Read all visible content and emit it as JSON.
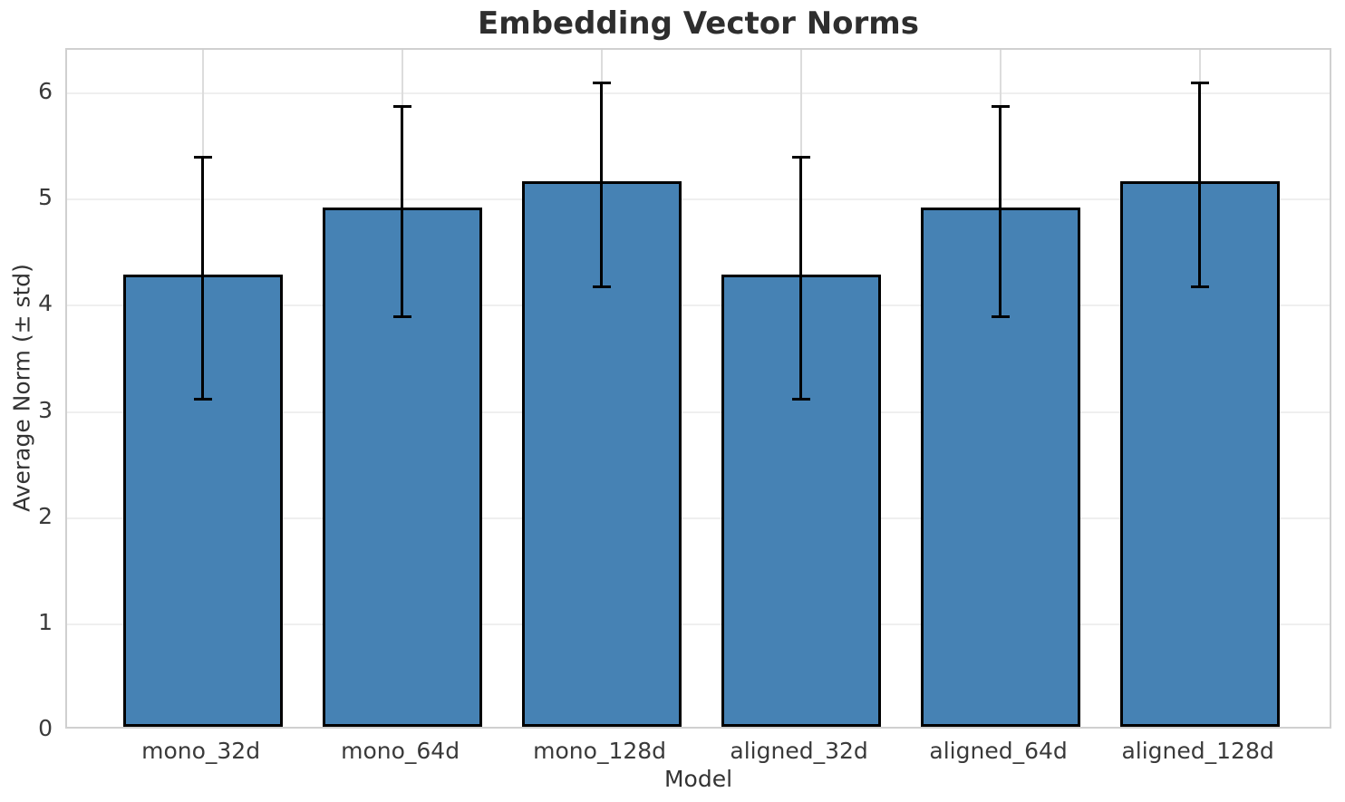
{
  "chart_data": {
    "type": "bar",
    "title": "Embedding Vector Norms",
    "xlabel": "Model",
    "ylabel": "Average Norm (± std)",
    "categories": [
      "mono_32d",
      "mono_64d",
      "mono_128d",
      "aligned_32d",
      "aligned_64d",
      "aligned_128d"
    ],
    "values": [
      4.26,
      4.89,
      5.14,
      4.26,
      4.89,
      5.14
    ],
    "errors": [
      1.14,
      0.99,
      0.96,
      1.14,
      0.99,
      0.96
    ],
    "error_tops": [
      5.4,
      5.88,
      6.1,
      5.4,
      5.88,
      6.1
    ],
    "error_bottoms": [
      3.12,
      3.9,
      4.18,
      3.12,
      3.9,
      4.18
    ],
    "yticks": [
      0,
      1,
      2,
      3,
      4,
      5,
      6
    ],
    "ylim": [
      0,
      6.41
    ],
    "xlim": [
      -0.68,
      5.67
    ],
    "bar_width": 0.8,
    "grid": true,
    "legend_position": "none",
    "colors": {
      "bar_fill": "#4682b4",
      "bar_edge": "#000000",
      "error_bar": "#000000",
      "grid_horizontal": "#efefef",
      "grid_vertical": "#dcdcdc",
      "spine": "#d0d0d0",
      "title_text": "#2e2e2e",
      "tick_text": "#3a3a3a"
    }
  }
}
